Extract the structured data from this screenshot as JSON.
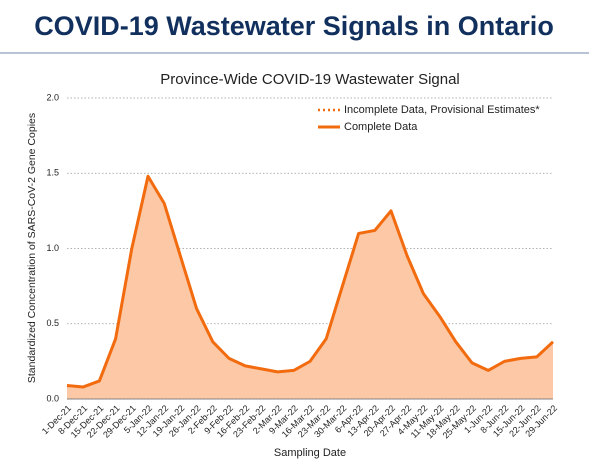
{
  "header": {
    "title": "COVID-19 Wastewater Signals in Ontario"
  },
  "chart_data": {
    "type": "area",
    "title": "Province-Wide COVID-19 Wastewater Signal",
    "x_label": "Sampling Date",
    "y_label": "Standardized Concentration of SARS-CoV-2 Gene Copies",
    "categories": [
      "1-Dec-21",
      "8-Dec-21",
      "15-Dec-21",
      "22-Dec-21",
      "29-Dec-21",
      "5-Jan-22",
      "12-Jan-22",
      "19-Jan-22",
      "26-Jan-22",
      "2-Feb-22",
      "9-Feb-22",
      "16-Feb-22",
      "23-Feb-22",
      "2-Mar-22",
      "9-Mar-22",
      "16-Mar-22",
      "23-Mar-22",
      "30-Mar-22",
      "6-Apr-22",
      "13-Apr-22",
      "20-Apr-22",
      "27-Apr-22",
      "4-May-22",
      "11-May-22",
      "18-May-22",
      "25-May-22",
      "1-Jun-22",
      "8-Jun-22",
      "15-Jun-22",
      "22-Jun-22",
      "29-Jun-22"
    ],
    "series": [
      {
        "name": "Incomplete Data, Provisional Estimates*",
        "color": "#f26b0f",
        "dash": "dotted",
        "values": [
          null,
          null,
          null,
          null,
          null,
          null,
          null,
          null,
          null,
          null,
          null,
          null,
          null,
          null,
          null,
          null,
          null,
          null,
          null,
          null,
          null,
          null,
          null,
          null,
          null,
          null,
          null,
          null,
          null,
          null,
          null
        ]
      },
      {
        "name": "Complete Data",
        "color": "#f26b0f",
        "fill": "#fcc8a6",
        "dash": "solid",
        "values": [
          0.09,
          0.08,
          0.12,
          0.4,
          1.0,
          1.48,
          1.3,
          0.95,
          0.6,
          0.38,
          0.27,
          0.22,
          0.2,
          0.18,
          0.19,
          0.25,
          0.4,
          0.75,
          1.1,
          1.12,
          1.25,
          0.95,
          0.7,
          0.55,
          0.38,
          0.24,
          0.19,
          0.25,
          0.27,
          0.28,
          0.38
        ]
      }
    ],
    "ylim": [
      0,
      2
    ],
    "yticks": [
      {
        "value": 0,
        "label": "0.0"
      },
      {
        "value": 0.5,
        "label": "0.5"
      },
      {
        "value": 1,
        "label": "1.0"
      },
      {
        "value": 1.5,
        "label": "1.5"
      },
      {
        "value": 2,
        "label": "2.0"
      }
    ],
    "grid": true,
    "legend": "upper right"
  }
}
